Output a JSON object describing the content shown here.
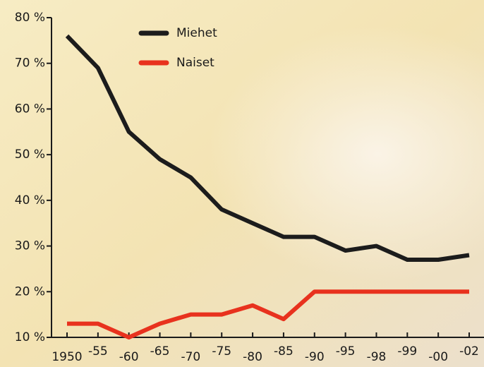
{
  "chart_data": {
    "type": "line",
    "categories": [
      "1950",
      "-55",
      "-60",
      "-65",
      "-70",
      "-75",
      "-80",
      "-85",
      "-90",
      "-95",
      "-98",
      "-99",
      "-00",
      "-02"
    ],
    "series": [
      {
        "name": "Miehet",
        "color": "#1c1c1c",
        "values": [
          76,
          69,
          55,
          49,
          45,
          38,
          35,
          32,
          32,
          29,
          30,
          27,
          27,
          28
        ]
      },
      {
        "name": "Naiset",
        "color": "#e8321e",
        "values": [
          13,
          13,
          10,
          13,
          15,
          15,
          17,
          14,
          20,
          20,
          20,
          20,
          20,
          20
        ]
      }
    ],
    "ylim": [
      10,
      80
    ],
    "yticks": [
      {
        "value": 10,
        "label": "10 %"
      },
      {
        "value": 20,
        "label": "20 %"
      },
      {
        "value": 30,
        "label": "30 %"
      },
      {
        "value": 40,
        "label": "40 %"
      },
      {
        "value": 50,
        "label": "50 %"
      },
      {
        "value": 60,
        "label": "60 %"
      },
      {
        "value": 70,
        "label": "70 %"
      },
      {
        "value": 80,
        "label": "80 %"
      }
    ],
    "legend": "upper left"
  }
}
